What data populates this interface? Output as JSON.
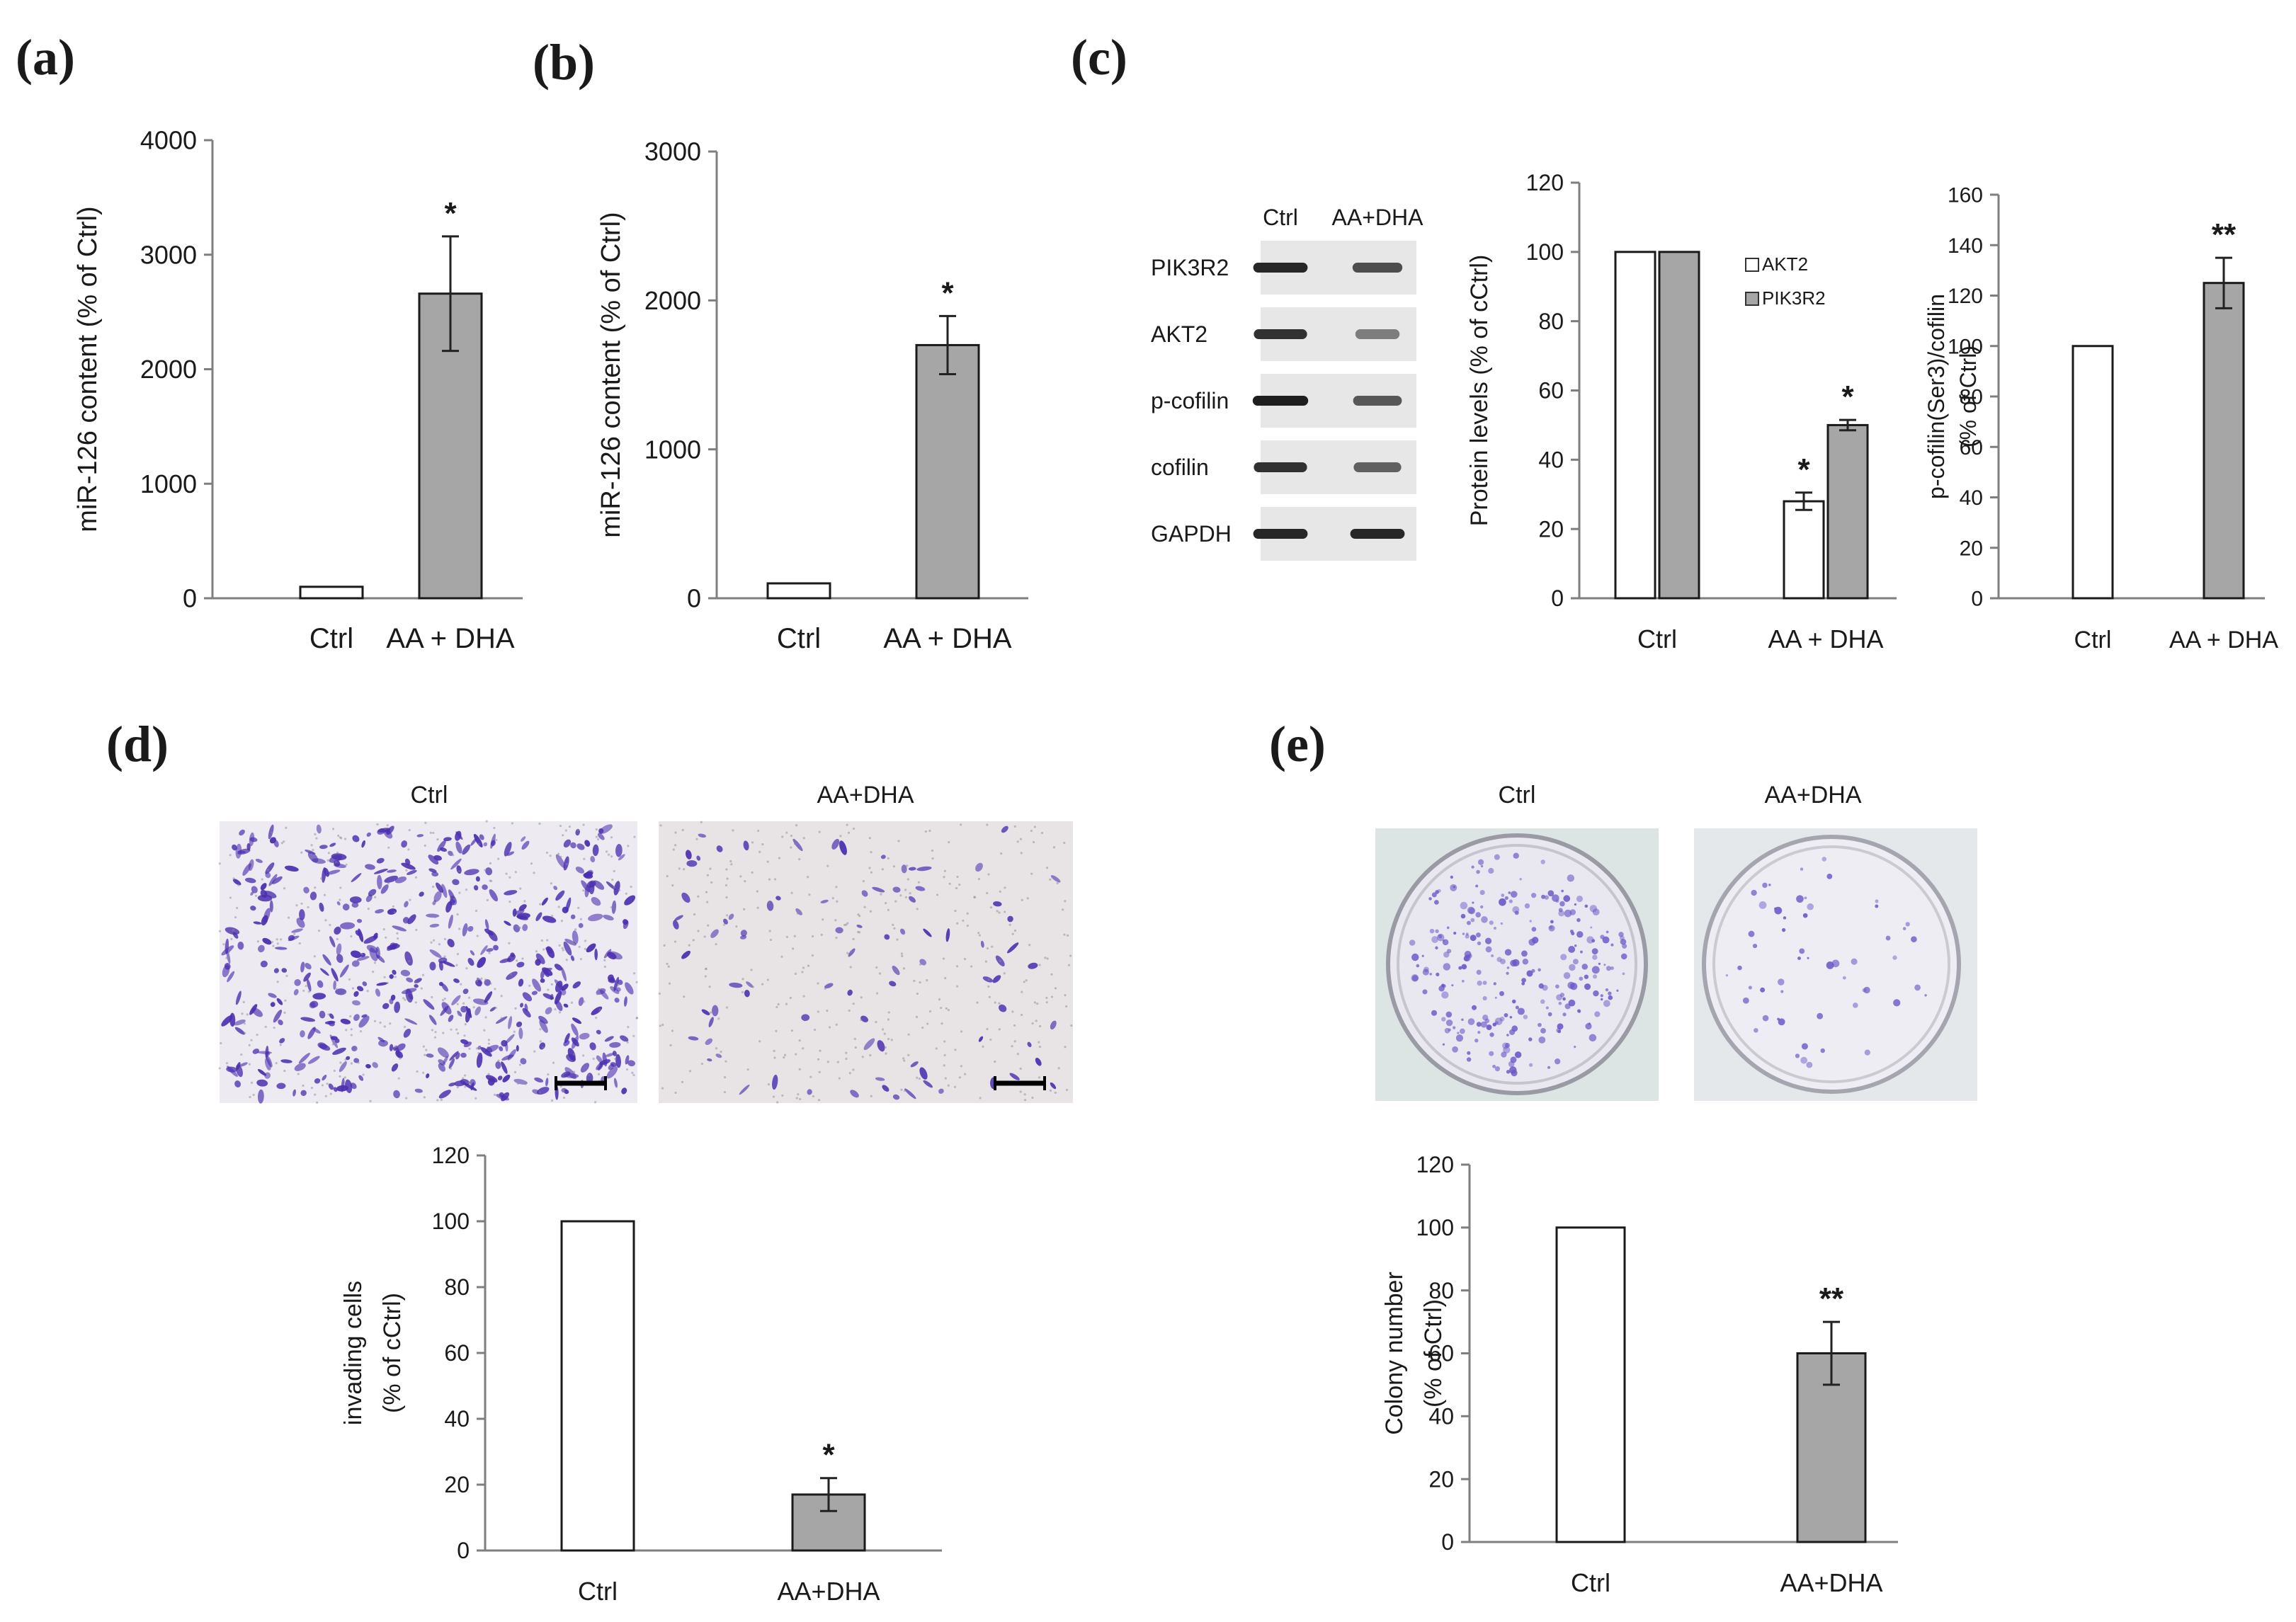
{
  "panels": {
    "a": {
      "letter": "(a)"
    },
    "b": {
      "letter": "(b)"
    },
    "c": {
      "letter": "(c)"
    },
    "d": {
      "letter": "(d)"
    },
    "e": {
      "letter": "(e)"
    }
  },
  "western_blot": {
    "lane_labels": [
      "Ctrl",
      "AA+DHA"
    ],
    "bands": [
      {
        "label": "PIK3R2",
        "ctrl_intensity": 0.9,
        "treat_intensity": 0.7
      },
      {
        "label": "AKT2",
        "ctrl_intensity": 0.85,
        "treat_intensity": 0.45
      },
      {
        "label": "p-cofilin",
        "ctrl_intensity": 0.95,
        "treat_intensity": 0.65
      },
      {
        "label": "cofilin",
        "ctrl_intensity": 0.85,
        "treat_intensity": 0.6
      },
      {
        "label": "GAPDH",
        "ctrl_intensity": 0.9,
        "treat_intensity": 0.9
      }
    ]
  },
  "images_d": {
    "ctrl_title": "Ctrl",
    "treat_title": "AA+DHA",
    "stain_color": "#4b2fb0",
    "ctrl_density": 1.0,
    "treat_density": 0.17
  },
  "images_e": {
    "ctrl_title": "Ctrl",
    "treat_title": "AA+DHA",
    "stain_color": "#6a55c8",
    "ctrl_density": 1.0,
    "treat_density": 0.6
  },
  "colors": {
    "open_bar": "#ffffff",
    "filled_bar": "#a6a6a6",
    "axis": "#7f7f7f"
  },
  "chart_data": [
    {
      "id": "a",
      "type": "bar",
      "categories": [
        "Ctrl",
        "AA + DHA"
      ],
      "values": [
        100,
        2660
      ],
      "errors": [
        0,
        500
      ],
      "significance": [
        "",
        "*"
      ],
      "fills": [
        "open",
        "filled"
      ],
      "ylabel": "miR-126 content  (% of Ctrl)",
      "ylim": [
        0,
        4000
      ],
      "yticks": [
        0,
        1000,
        2000,
        3000,
        4000
      ]
    },
    {
      "id": "b",
      "type": "bar",
      "categories": [
        "Ctrl",
        "AA + DHA"
      ],
      "values": [
        100,
        1700
      ],
      "errors": [
        0,
        195
      ],
      "significance": [
        "",
        "*"
      ],
      "fills": [
        "open",
        "filled"
      ],
      "ylabel": "miR-126 content  (% of Ctrl)",
      "ylim": [
        0,
        3000
      ],
      "yticks": [
        0,
        1000,
        2000,
        3000
      ]
    },
    {
      "id": "c1",
      "type": "bar",
      "categories": [
        "Ctrl",
        "AA + DHA"
      ],
      "series": [
        {
          "name": "AKT2",
          "fill": "open",
          "values": [
            100,
            28
          ],
          "errors": [
            0,
            2.5
          ],
          "significance": [
            "",
            "*"
          ]
        },
        {
          "name": "PIK3R2",
          "fill": "filled",
          "values": [
            100,
            50
          ],
          "errors": [
            0,
            1.5
          ],
          "significance": [
            "",
            "*"
          ]
        }
      ],
      "ylabel": "Protein levels (% of cCtrl)",
      "ylim": [
        0,
        120
      ],
      "yticks": [
        0,
        20,
        40,
        60,
        80,
        100,
        120
      ],
      "legend_position": "top-right"
    },
    {
      "id": "c2",
      "type": "bar",
      "categories": [
        "Ctrl",
        "AA + DHA"
      ],
      "values": [
        100,
        125
      ],
      "errors": [
        0,
        10
      ],
      "significance": [
        "",
        "**"
      ],
      "fills": [
        "open",
        "filled"
      ],
      "ylabel": "p-cofilin(Ser3)/cofilin",
      "ylabel2": "(% of Ctrl)",
      "ylim": [
        0,
        160
      ],
      "yticks": [
        0,
        20,
        40,
        60,
        80,
        100,
        120,
        140,
        160
      ]
    },
    {
      "id": "d",
      "type": "bar",
      "categories": [
        "Ctrl",
        "AA+DHA"
      ],
      "values": [
        100,
        17
      ],
      "errors": [
        0,
        5
      ],
      "significance": [
        "",
        "*"
      ],
      "fills": [
        "open",
        "filled"
      ],
      "ylabel": "invading cells",
      "ylabel2": "(% of cCtrl)",
      "ylim": [
        0,
        120
      ],
      "yticks": [
        0,
        20,
        40,
        60,
        80,
        100,
        120
      ]
    },
    {
      "id": "e",
      "type": "bar",
      "categories": [
        "Ctrl",
        "AA+DHA"
      ],
      "values": [
        100,
        60
      ],
      "errors": [
        0,
        10
      ],
      "significance": [
        "",
        "**"
      ],
      "fills": [
        "open",
        "filled"
      ],
      "ylabel": "Colony number",
      "ylabel2": "(% of Ctrl)",
      "ylim": [
        0,
        120
      ],
      "yticks": [
        0,
        20,
        40,
        60,
        80,
        100,
        120
      ]
    }
  ]
}
